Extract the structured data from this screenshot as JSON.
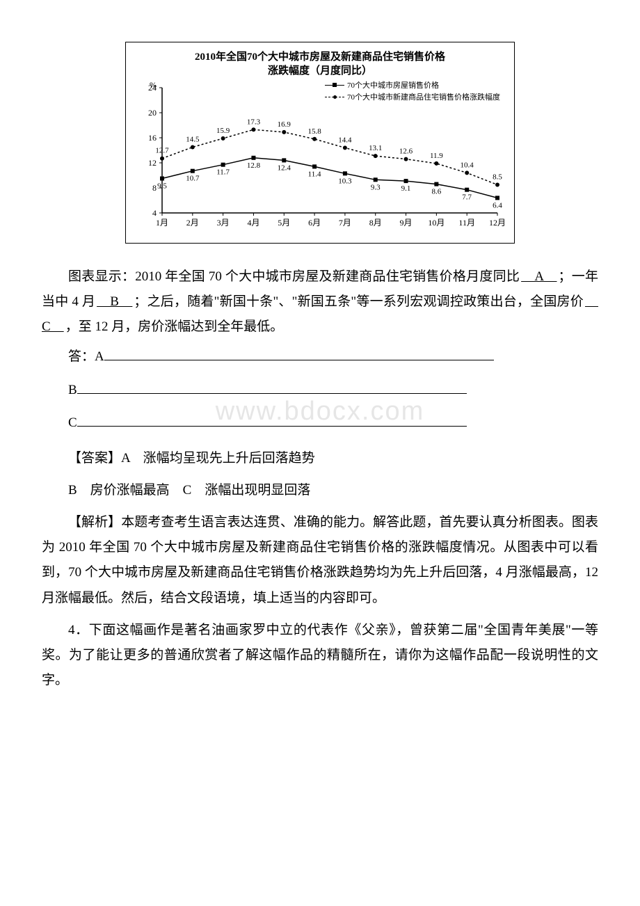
{
  "chart": {
    "type": "line",
    "title_line1": "2010年全国70个大中城市房屋及新建商品住宅销售价格",
    "title_line2": "涨跌幅度（月度同比）",
    "y_axis_label": "%",
    "y_ticks": [
      4,
      8,
      12,
      16,
      20,
      24
    ],
    "x_categories": [
      "1月",
      "2月",
      "3月",
      "4月",
      "5月",
      "6月",
      "7月",
      "8月",
      "9月",
      "10月",
      "11月",
      "12月"
    ],
    "series": [
      {
        "name": "70个大中城市房屋销售价格",
        "marker": "square",
        "line_style": "solid",
        "color": "#000000",
        "values": [
          9.5,
          10.7,
          11.7,
          12.8,
          12.4,
          11.4,
          10.3,
          9.3,
          9.1,
          8.6,
          7.7,
          6.4
        ]
      },
      {
        "name": "70个大中城市新建商品住宅销售价格涨跌幅度",
        "marker": "circle",
        "line_style": "dashed",
        "color": "#000000",
        "values": [
          12.7,
          14.5,
          15.9,
          17.3,
          16.9,
          15.8,
          14.4,
          13.1,
          12.6,
          11.9,
          10.4,
          8.5
        ]
      }
    ],
    "ylim": [
      4,
      24
    ],
    "background_color": "#ffffff",
    "axis_color": "#000000",
    "tick_fontsize": 12,
    "label_fontsize": 11
  },
  "body": {
    "p1_prefix": "图表显示：2010 年全国 70 个大中城市房屋及新建商品住宅销售价格月度同比",
    "slot_A": "　A　",
    "p1_mid1": "；一年当中 4 月",
    "slot_B": "　B　",
    "p1_mid2": "；之后，随着\"新国十条\"、\"新国五条\"等一系列宏观调控政策出台，全国房价",
    "slot_C": "　C　",
    "p1_end": "，至 12 月，房价涨幅达到全年最低。",
    "ans_label_A": "答：A",
    "ans_label_B": "B",
    "ans_label_C": "C",
    "answer_head": "【答案】A　涨幅均呈现先上升后回落趋势",
    "answer_line2": "B　房价涨幅最高　C　涨幅出现明显回落",
    "analysis": "【解析】本题考查考生语言表达连贯、准确的能力。解答此题，首先要认真分析图表。图表为 2010 年全国 70 个大中城市房屋及新建商品住宅销售价格的涨跌幅度情况。从图表中可以看到，70 个大中城市房屋及新建商品住宅销售价格涨跌趋势均为先上升后回落，4 月涨幅最高，12 月涨幅最低。然后，结合文段语境，填上适当的内容即可。",
    "q4": "4．下面这幅画作是著名油画家罗中立的代表作《父亲》，曾获第二届\"全国青年美展\"一等奖。为了能让更多的普通欣赏者了解这幅作品的精髓所在，请你为这幅作品配一段说明性的文字。"
  },
  "watermark": "www.bdocx.com"
}
